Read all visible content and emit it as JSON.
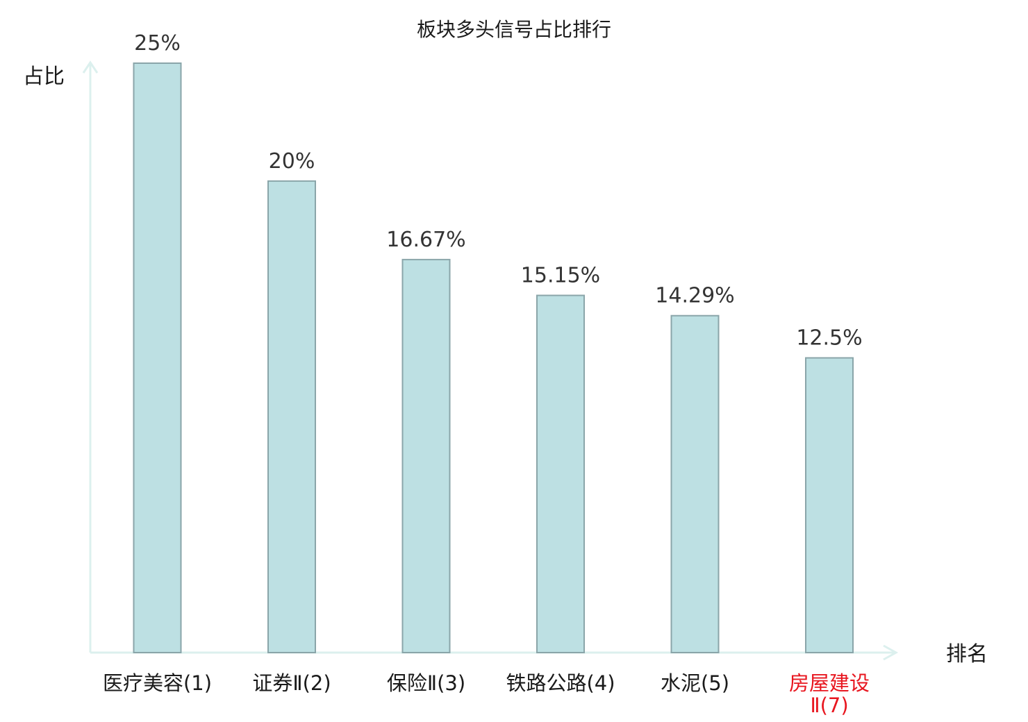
{
  "chart_data": {
    "type": "bar",
    "title": "板块多头信号占比排行",
    "ylabel": "占比",
    "xlabel": "排名",
    "categories": [
      "医疗美容(1)",
      "证券Ⅱ(2)",
      "保险Ⅱ(3)",
      "铁路公路(4)",
      "水泥(5)",
      "房屋建设Ⅱ(7)"
    ],
    "category_lines": [
      [
        "医疗美容(1)"
      ],
      [
        "证券Ⅱ(2)"
      ],
      [
        "保险Ⅱ(3)"
      ],
      [
        "铁路公路(4)"
      ],
      [
        "水泥(5)"
      ],
      [
        "房屋建设",
        "Ⅱ(7)"
      ]
    ],
    "values": [
      25,
      20,
      16.67,
      15.15,
      14.29,
      12.5
    ],
    "value_labels": [
      "25%",
      "20%",
      "16.67%",
      "15.15%",
      "14.29%",
      "12.5%"
    ],
    "highlight_index": 5,
    "ylim": [
      0,
      25
    ],
    "grid": false,
    "colors": {
      "bar_fill": "#bde0e3",
      "bar_stroke": "#8aa5a9",
      "axis": "#dcf0ee",
      "tick_text": "#1a1a1a",
      "highlight_text": "#e8161f"
    }
  }
}
